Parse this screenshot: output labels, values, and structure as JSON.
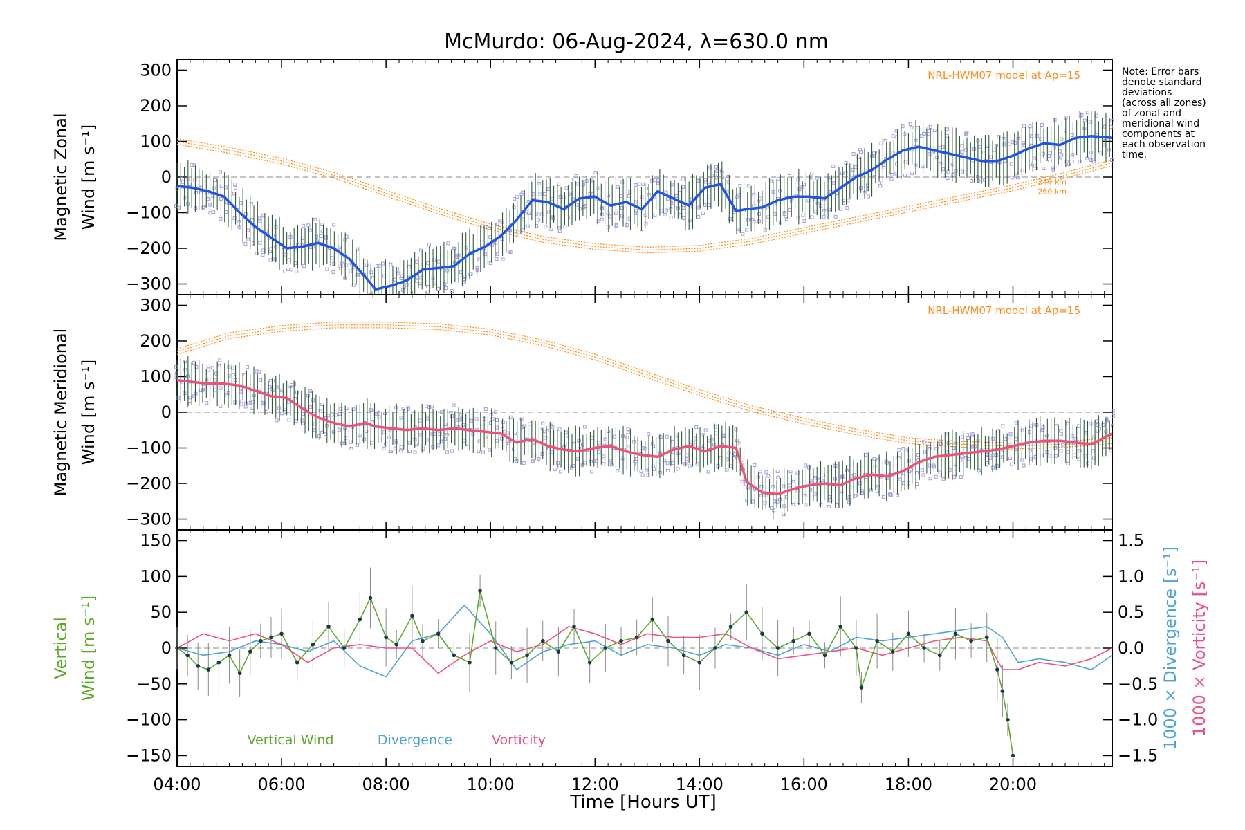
{
  "figure": {
    "title": "McMurdo: 06-Aug-2024, λ=630.0 nm",
    "note": [
      "Note: Error bars",
      "denote standard",
      "deviations",
      "(across all zones)",
      "of zonal and",
      "meridional wind",
      "components at",
      "each observation",
      "time."
    ],
    "xlabel": "Time [Hours UT]"
  },
  "colors": {
    "zonal": "#1f55e6",
    "meridional": "#f0507a",
    "model": "#ff8c1a",
    "vertical": "#5aaa2a",
    "divergence": "#4ca3d8",
    "vorticity": "#f0507a",
    "scatter": "#a89ee0",
    "errorbar": "#2e5a3a",
    "zero_line": "#888888"
  },
  "chart_data": [
    {
      "type": "line",
      "panel": "zonal",
      "ylabel": [
        "Magnetic Zonal",
        "Wind [m s⁻¹]"
      ],
      "model_label": "NRL-HWM07 model at Ap=15",
      "model_altitudes": [
        "240 km",
        "260 km"
      ],
      "xlim": [
        4.0,
        21.9
      ],
      "ylim": [
        -330,
        330
      ],
      "x_ticks": [
        "04:00",
        "06:00",
        "08:00",
        "10:00",
        "12:00",
        "14:00",
        "16:00",
        "18:00",
        "20:00"
      ],
      "y_ticks": [
        -300,
        -200,
        -100,
        0,
        100,
        200,
        300
      ],
      "series": [
        {
          "role": "observed",
          "x": [
            4.0,
            4.3,
            4.6,
            4.9,
            5.2,
            5.5,
            5.8,
            6.1,
            6.4,
            6.7,
            7.0,
            7.3,
            7.6,
            7.8,
            8.1,
            8.4,
            8.7,
            9.0,
            9.3,
            9.6,
            9.9,
            10.2,
            10.5,
            10.8,
            11.1,
            11.4,
            11.7,
            12.0,
            12.3,
            12.6,
            12.9,
            13.2,
            13.5,
            13.8,
            14.1,
            14.4,
            14.7,
            14.9,
            15.2,
            15.5,
            15.8,
            16.1,
            16.4,
            16.7,
            17.0,
            17.3,
            17.6,
            17.9,
            18.2,
            18.5,
            18.8,
            19.1,
            19.4,
            19.7,
            20.0,
            20.3,
            20.6,
            20.9,
            21.2,
            21.5,
            21.9
          ],
          "values": [
            -25,
            -30,
            -40,
            -55,
            -100,
            -140,
            -170,
            -200,
            -195,
            -185,
            -200,
            -230,
            -280,
            -315,
            -305,
            -290,
            -260,
            -255,
            -250,
            -215,
            -195,
            -165,
            -120,
            -65,
            -70,
            -90,
            -60,
            -55,
            -80,
            -70,
            -90,
            -40,
            -60,
            -80,
            -30,
            -20,
            -95,
            -90,
            -85,
            -65,
            -55,
            -55,
            -60,
            -30,
            0,
            20,
            50,
            75,
            85,
            75,
            65,
            55,
            45,
            45,
            60,
            80,
            95,
            90,
            110,
            115,
            110
          ],
          "error": 60
        },
        {
          "role": "model",
          "x": [
            4.0,
            5.0,
            6.0,
            7.0,
            8.0,
            9.0,
            10.0,
            11.0,
            12.0,
            13.0,
            14.0,
            15.0,
            16.0,
            17.0,
            18.0,
            19.0,
            20.0,
            21.0,
            21.9
          ],
          "values": [
            100,
            75,
            45,
            5,
            -45,
            -95,
            -140,
            -175,
            -195,
            -205,
            -200,
            -180,
            -150,
            -120,
            -90,
            -60,
            -30,
            5,
            40
          ]
        }
      ]
    },
    {
      "type": "line",
      "panel": "meridional",
      "ylabel": [
        "Magnetic Meridional",
        "Wind [m s⁻¹]"
      ],
      "model_label": "NRL-HWM07 model at Ap=15",
      "xlim": [
        4.0,
        21.9
      ],
      "ylim": [
        -330,
        330
      ],
      "x_ticks": [
        "04:00",
        "06:00",
        "08:00",
        "10:00",
        "12:00",
        "14:00",
        "16:00",
        "18:00",
        "20:00"
      ],
      "y_ticks": [
        -300,
        -200,
        -100,
        0,
        100,
        200,
        300
      ],
      "series": [
        {
          "role": "observed",
          "x": [
            4.0,
            4.3,
            4.6,
            4.9,
            5.2,
            5.5,
            5.8,
            6.1,
            6.4,
            6.7,
            7.0,
            7.3,
            7.6,
            7.8,
            8.1,
            8.4,
            8.7,
            9.0,
            9.3,
            9.6,
            9.9,
            10.2,
            10.5,
            10.8,
            11.1,
            11.4,
            11.7,
            12.0,
            12.3,
            12.6,
            12.9,
            13.2,
            13.5,
            13.8,
            14.1,
            14.4,
            14.7,
            14.9,
            15.2,
            15.5,
            15.8,
            16.1,
            16.4,
            16.7,
            17.0,
            17.3,
            17.6,
            17.9,
            18.2,
            18.5,
            18.8,
            19.1,
            19.4,
            19.7,
            20.0,
            20.3,
            20.6,
            20.9,
            21.2,
            21.5,
            21.9
          ],
          "values": [
            90,
            85,
            80,
            80,
            75,
            60,
            45,
            40,
            10,
            -15,
            -30,
            -40,
            -30,
            -40,
            -45,
            -50,
            -45,
            -50,
            -45,
            -50,
            -55,
            -60,
            -85,
            -75,
            -95,
            -105,
            -110,
            -100,
            -95,
            -110,
            -120,
            -125,
            -105,
            -95,
            -110,
            -95,
            -100,
            -195,
            -225,
            -230,
            -215,
            -205,
            -200,
            -205,
            -185,
            -175,
            -180,
            -165,
            -140,
            -125,
            -120,
            -115,
            -110,
            -105,
            -95,
            -85,
            -80,
            -80,
            -85,
            -90,
            -60
          ],
          "error": 55
        },
        {
          "role": "model",
          "x": [
            4.0,
            5.0,
            6.0,
            7.0,
            8.0,
            9.0,
            10.0,
            11.0,
            12.0,
            13.0,
            14.0,
            15.0,
            16.0,
            17.0,
            18.0,
            19.0,
            20.0,
            21.0,
            21.9
          ],
          "values": [
            170,
            215,
            235,
            245,
            245,
            240,
            225,
            195,
            155,
            105,
            55,
            10,
            -25,
            -55,
            -80,
            -90,
            -95,
            -90,
            -80
          ]
        }
      ]
    },
    {
      "type": "line",
      "panel": "vertical",
      "ylabel_left": [
        "Vertical",
        "Wind [m s⁻¹]"
      ],
      "ylabel_right_a": "1000 × Divergence [s⁻¹]",
      "ylabel_right_b": "1000 × Vorticity [s⁻¹]",
      "xlim": [
        4.0,
        21.9
      ],
      "ylim": [
        -165,
        165
      ],
      "ylim_right": [
        -1.65,
        1.65
      ],
      "x_ticks": [
        "04:00",
        "06:00",
        "08:00",
        "10:00",
        "12:00",
        "14:00",
        "16:00",
        "18:00",
        "20:00"
      ],
      "y_ticks": [
        -150,
        -100,
        -50,
        0,
        50,
        100,
        150
      ],
      "y_ticks_right": [
        "-1.5",
        "-1.0",
        "-0.5",
        "0.0",
        "0.5",
        "1.0",
        "1.5"
      ],
      "legend": [
        "Vertical Wind",
        "Divergence",
        "Vorticity"
      ],
      "series": [
        {
          "name": "Vertical Wind",
          "x": [
            4.0,
            4.2,
            4.4,
            4.6,
            4.8,
            5.0,
            5.2,
            5.4,
            5.6,
            5.8,
            6.0,
            6.3,
            6.6,
            6.9,
            7.2,
            7.5,
            7.7,
            8.0,
            8.2,
            8.5,
            8.7,
            9.0,
            9.3,
            9.6,
            9.8,
            10.1,
            10.4,
            10.7,
            11.0,
            11.3,
            11.6,
            11.9,
            12.2,
            12.5,
            12.8,
            13.1,
            13.4,
            13.7,
            14.0,
            14.3,
            14.6,
            14.9,
            15.2,
            15.5,
            15.8,
            16.1,
            16.4,
            16.7,
            17.0,
            17.1,
            17.4,
            17.7,
            18.0,
            18.3,
            18.6,
            18.9,
            19.2,
            19.5,
            19.7,
            19.8,
            19.9,
            20.0
          ],
          "values": [
            0,
            -10,
            -25,
            -30,
            -20,
            -10,
            -35,
            -5,
            10,
            15,
            20,
            -20,
            5,
            30,
            0,
            40,
            70,
            15,
            5,
            45,
            10,
            20,
            -10,
            -20,
            80,
            0,
            -20,
            -10,
            10,
            -5,
            30,
            -20,
            0,
            10,
            15,
            40,
            10,
            -10,
            -20,
            0,
            30,
            50,
            20,
            0,
            10,
            20,
            -10,
            30,
            0,
            -55,
            10,
            -5,
            20,
            0,
            -10,
            20,
            10,
            15,
            -30,
            -60,
            -100,
            -150
          ],
          "error": 30
        },
        {
          "name": "Divergence",
          "x": [
            4.0,
            4.5,
            5.0,
            5.5,
            6.0,
            6.5,
            7.0,
            7.5,
            8.0,
            8.5,
            9.0,
            9.5,
            10.0,
            10.5,
            11.0,
            11.5,
            12.0,
            12.5,
            13.0,
            13.5,
            14.0,
            14.5,
            15.0,
            15.5,
            16.0,
            16.5,
            17.0,
            17.5,
            18.0,
            18.5,
            19.0,
            19.5,
            19.8,
            20.1,
            20.5,
            21.0,
            21.5,
            21.9
          ],
          "values": [
            0.0,
            -0.1,
            -0.05,
            0.1,
            0.05,
            -0.05,
            0.1,
            -0.25,
            -0.4,
            0.1,
            0.2,
            0.6,
            0.2,
            -0.3,
            -0.05,
            0.05,
            0.1,
            -0.1,
            0.05,
            0.0,
            -0.1,
            0.05,
            0.0,
            -0.1,
            0.05,
            -0.05,
            0.15,
            0.1,
            0.15,
            0.2,
            0.25,
            0.3,
            0.15,
            -0.2,
            -0.15,
            -0.2,
            -0.3,
            -0.1
          ]
        },
        {
          "name": "Vorticity",
          "x": [
            4.0,
            4.5,
            5.0,
            5.5,
            6.0,
            6.5,
            7.0,
            7.5,
            8.0,
            8.5,
            9.0,
            9.5,
            10.0,
            10.5,
            11.0,
            11.5,
            12.0,
            12.5,
            13.0,
            13.5,
            14.0,
            14.5,
            15.0,
            15.5,
            16.0,
            16.5,
            17.0,
            17.5,
            18.0,
            18.5,
            19.0,
            19.5,
            19.8,
            20.1,
            20.5,
            21.0,
            21.5,
            21.9
          ],
          "values": [
            0.0,
            0.2,
            0.1,
            0.2,
            0.05,
            -0.2,
            0.0,
            0.05,
            0.0,
            0.0,
            -0.35,
            -0.1,
            0.1,
            -0.05,
            0.05,
            0.3,
            0.2,
            0.05,
            0.2,
            0.15,
            0.15,
            0.2,
            0.0,
            -0.15,
            -0.1,
            -0.05,
            0.0,
            -0.1,
            0.0,
            0.1,
            0.15,
            0.1,
            -0.3,
            -0.3,
            -0.2,
            -0.25,
            -0.15,
            0.0
          ]
        }
      ]
    }
  ]
}
